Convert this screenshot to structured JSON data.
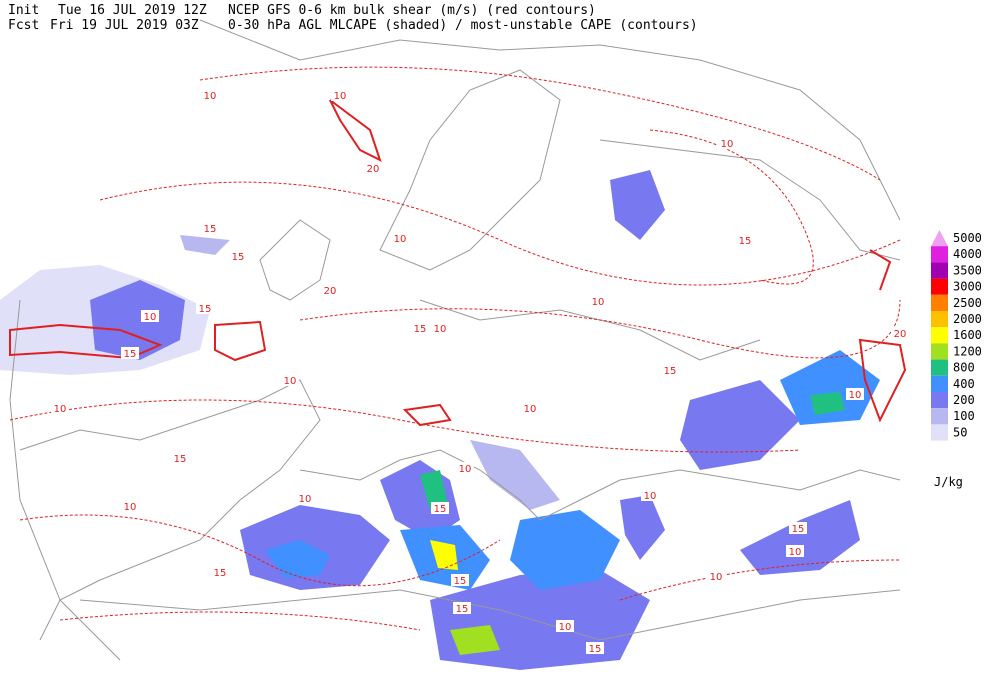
{
  "header": {
    "line1": {
      "label": "Init",
      "time": "Tue 16 JUL 2019 12Z",
      "title": "NCEP GFS 0-6 km bulk shear (m/s) (red contours)"
    },
    "line2": {
      "label": "Fcst",
      "time": "Fri 19 JUL 2019 03Z",
      "title": "0-30 hPa AGL MLCAPE (shaded) / most-unstable CAPE (contours)"
    }
  },
  "colorbar": {
    "unit": "J/kg",
    "levels": [
      {
        "label": "5000",
        "color": "#f0a0f0"
      },
      {
        "label": "4000",
        "color": "#e020e0"
      },
      {
        "label": "3500",
        "color": "#a000b0"
      },
      {
        "label": "3000",
        "color": "#ff0000"
      },
      {
        "label": "2500",
        "color": "#ff8000"
      },
      {
        "label": "2000",
        "color": "#ffc000"
      },
      {
        "label": "1600",
        "color": "#ffff00"
      },
      {
        "label": "1200",
        "color": "#a0e020"
      },
      {
        "label": "800",
        "color": "#20c080"
      },
      {
        "label": "400",
        "color": "#4090ff"
      },
      {
        "label": "200",
        "color": "#7878f0"
      },
      {
        "label": "100",
        "color": "#b8b8f0"
      },
      {
        "label": "50",
        "color": "#e0e0f8"
      }
    ]
  },
  "contour_labels": [
    "10",
    "10",
    "15",
    "20",
    "10",
    "15",
    "20",
    "15",
    "10",
    "15",
    "10",
    "10",
    "15",
    "10",
    "15",
    "10",
    "10",
    "15",
    "10",
    "10",
    "15",
    "10",
    "15",
    "10",
    "15",
    "10",
    "20",
    "10",
    "15",
    "15",
    "10",
    "15",
    "10",
    "15",
    "10"
  ]
}
